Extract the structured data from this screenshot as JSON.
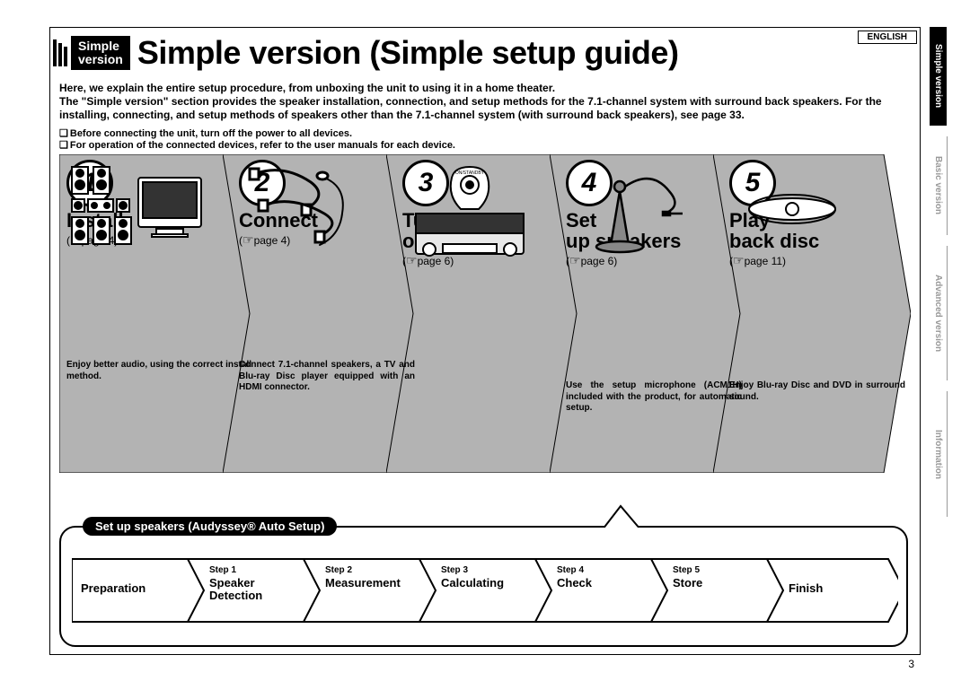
{
  "language_tag": "ENGLISH",
  "header_tag_line1": "Simple",
  "header_tag_line2": "version",
  "main_title": "Simple version (Simple setup guide)",
  "intro_p1": "Here, we explain the entire setup procedure, from unboxing the unit to using it in a home theater.",
  "intro_p2": "The \"Simple version\" section provides the speaker installation, connection, and setup methods for the 7.1-channel system with surround back speakers. For the installing, connecting, and setup methods of speakers other than the 7.1-channel system (with surround back speakers), see page 33.",
  "note1": "Before connecting the unit, turn off the power to all devices.",
  "note2": "For operation of the connected devices, refer to the user manuals for each device.",
  "steps": [
    {
      "num": "1",
      "title": "Install",
      "page": "page 4",
      "caption": "Enjoy better audio, using the correct install method."
    },
    {
      "num": "2",
      "title": "Connect",
      "page": "page 4",
      "caption": "Connect 7.1-channel speakers, a TV and Blu-ray Disc player equipped with an HDMI connector."
    },
    {
      "num": "3",
      "title": "Turn on power",
      "page": "page 6",
      "caption": ""
    },
    {
      "num": "4",
      "title": "Set up speakers",
      "page": "page 6",
      "caption": "Use the setup microphone (ACM1H) included with the product, for automatic setup."
    },
    {
      "num": "5",
      "title": "Play back disc",
      "page": "page 11",
      "caption": "Enjoy Blu-ray Disc and DVD in surround sound."
    }
  ],
  "audyssey_title": "Set up speakers (Audyssey® Auto Setup)",
  "audyssey_steps": [
    {
      "step": "",
      "label": "Preparation"
    },
    {
      "step": "Step 1",
      "label": "Speaker Detection"
    },
    {
      "step": "Step 2",
      "label": "Measurement"
    },
    {
      "step": "Step 3",
      "label": "Calculating"
    },
    {
      "step": "Step 4",
      "label": "Check"
    },
    {
      "step": "Step 5",
      "label": "Store"
    },
    {
      "step": "",
      "label": "Finish"
    }
  ],
  "page_number": "3",
  "side_tabs": [
    {
      "label": "Simple version",
      "active": true
    },
    {
      "label": "Basic version",
      "active": false
    },
    {
      "label": "Advanced version",
      "active": false
    },
    {
      "label": "Information",
      "active": false
    }
  ],
  "colors": {
    "chevron_bg": "#b3b3b3",
    "black": "#000000",
    "gray_text": "#999999"
  },
  "layout": {
    "chevron_width": 190,
    "chevron_height": 355,
    "chevron_overlap": 30,
    "aud_step_width": 135
  }
}
